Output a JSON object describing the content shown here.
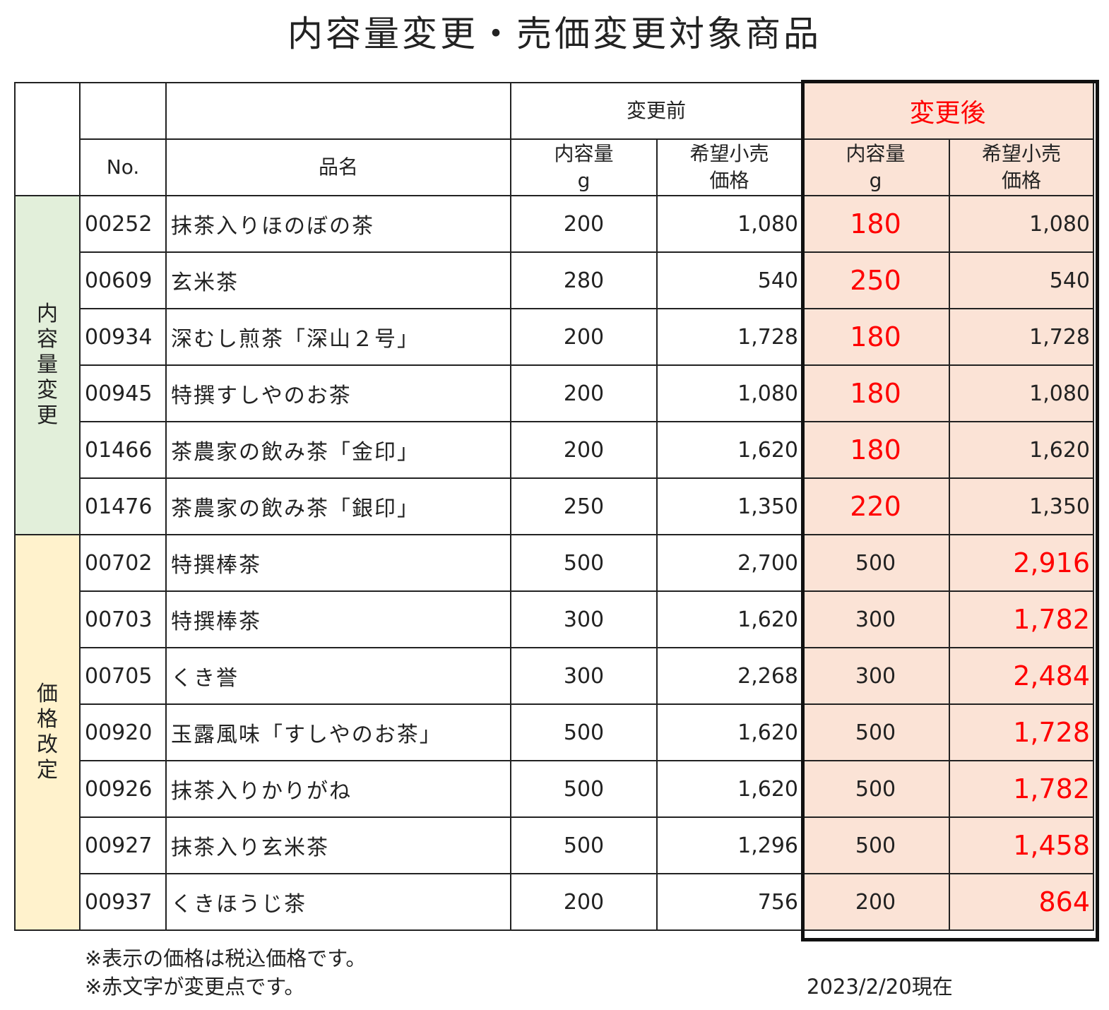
{
  "title": "内容量変更・売価変更対象商品",
  "header": {
    "before_label": "変更前",
    "after_label": "変更後",
    "no_label": "No.",
    "name_label": "品名",
    "qty_label": "内容量\ng",
    "price_label": "希望小売\n価格"
  },
  "groups": {
    "qty_change": "内容量変更",
    "price_change": "価格改定"
  },
  "rows": [
    {
      "no": "00252",
      "name": "抹茶入りほのぼの茶",
      "qty_before": "200",
      "price_before": "1,080",
      "qty_after": "180",
      "price_after": "1,080"
    },
    {
      "no": "00609",
      "name": "玄米茶",
      "qty_before": "280",
      "price_before": "540",
      "qty_after": "250",
      "price_after": "540"
    },
    {
      "no": "00934",
      "name": "深むし煎茶「深山２号」",
      "qty_before": "200",
      "price_before": "1,728",
      "qty_after": "180",
      "price_after": "1,728"
    },
    {
      "no": "00945",
      "name": "特撰すしやのお茶",
      "qty_before": "200",
      "price_before": "1,080",
      "qty_after": "180",
      "price_after": "1,080"
    },
    {
      "no": "01466",
      "name": "茶農家の飲み茶「金印」",
      "qty_before": "200",
      "price_before": "1,620",
      "qty_after": "180",
      "price_after": "1,620"
    },
    {
      "no": "01476",
      "name": "茶農家の飲み茶「銀印」",
      "qty_before": "250",
      "price_before": "1,350",
      "qty_after": "220",
      "price_after": "1,350"
    },
    {
      "no": "00702",
      "name": "特撰棒茶",
      "qty_before": "500",
      "price_before": "2,700",
      "qty_after": "500",
      "price_after": "2,916"
    },
    {
      "no": "00703",
      "name": "特撰棒茶",
      "qty_before": "300",
      "price_before": "1,620",
      "qty_after": "300",
      "price_after": "1,782"
    },
    {
      "no": "00705",
      "name": "くき誉",
      "qty_before": "300",
      "price_before": "2,268",
      "qty_after": "300",
      "price_after": "2,484"
    },
    {
      "no": "00920",
      "name": "玉露風味「すしやのお茶」",
      "qty_before": "500",
      "price_before": "1,620",
      "qty_after": "500",
      "price_after": "1,728"
    },
    {
      "no": "00926",
      "name": "抹茶入りかりがね",
      "qty_before": "500",
      "price_before": "1,620",
      "qty_after": "500",
      "price_after": "1,782"
    },
    {
      "no": "00927",
      "name": "抹茶入り玄米茶",
      "qty_before": "500",
      "price_before": "1,296",
      "qty_after": "500",
      "price_after": "1,458"
    },
    {
      "no": "00937",
      "name": "くきほうじ茶",
      "qty_before": "200",
      "price_before": "756",
      "qty_after": "200",
      "price_after": "864"
    }
  ],
  "notes": {
    "tax": "※表示の価格は税込価格です。",
    "red": "※赤文字が変更点です。",
    "date": "2023/2/20現在"
  },
  "colors": {
    "after_bg": "#fbe3d6",
    "qty_group_bg": "#e2efda",
    "price_group_bg": "#fff2cc",
    "highlight_text": "#ff0000"
  }
}
